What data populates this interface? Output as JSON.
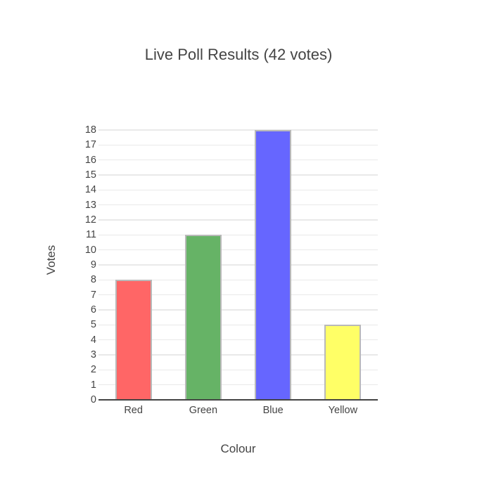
{
  "chart_data": {
    "type": "bar",
    "title": "Live Poll Results (42 votes)",
    "total_votes": 42,
    "categories": [
      "Red",
      "Green",
      "Blue",
      "Yellow"
    ],
    "values": [
      8,
      11,
      18,
      5
    ],
    "xlabel": "Colour",
    "ylabel": "Votes",
    "ylim": [
      0,
      18
    ],
    "ytick_step": 1,
    "grid": true,
    "legend": "none",
    "colors": {
      "bars": [
        "#ff6666",
        "#66b366",
        "#6666ff",
        "#ffff66"
      ],
      "bar_border": "#b9b9b9",
      "grid": "#e9e9e9",
      "axis_line": "#444444",
      "text": "#444444",
      "background": "#ffffff"
    }
  }
}
